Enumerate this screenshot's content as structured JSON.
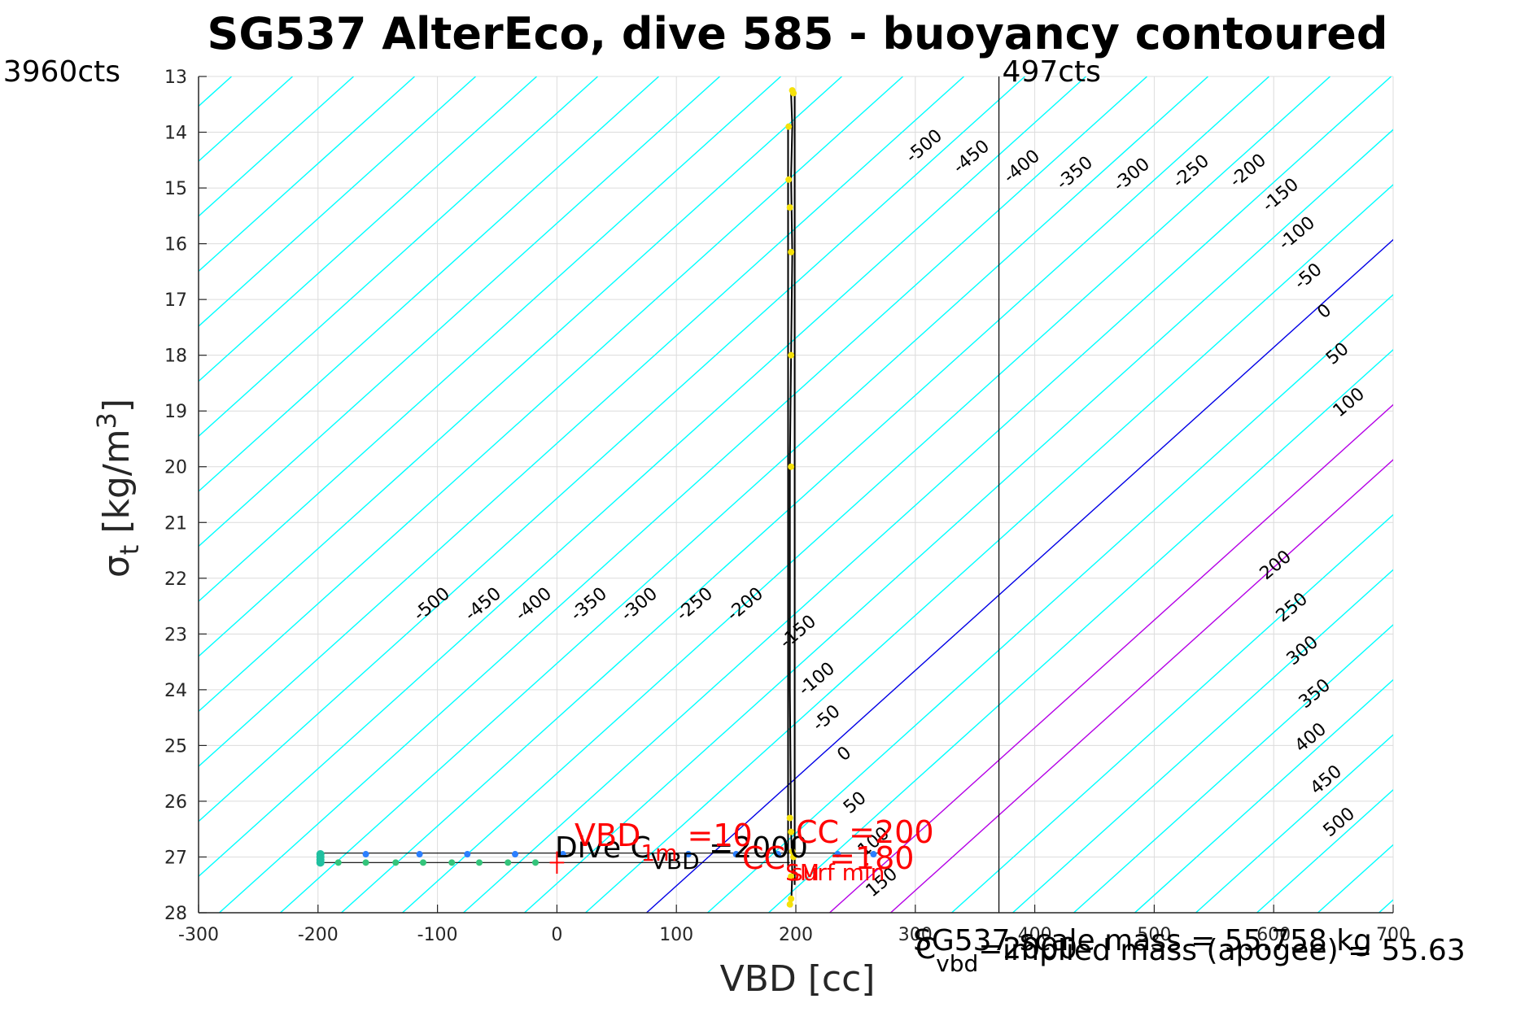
{
  "chart_data": {
    "type": "scatter",
    "title": "SG537 AlterEco, dive 585 - buoyancy contoured",
    "xlabel": "VBD [cc]",
    "ylabel_main": "σ",
    "ylabel_sub": "t",
    "ylabel_rest": " [kg/m",
    "ylabel_sup": "3",
    "ylabel_close": "]",
    "xlim": [
      -300,
      700
    ],
    "ylim": [
      13,
      28
    ],
    "y_reversed": true,
    "grid": true,
    "x_ticks": [
      -300,
      -200,
      -100,
      0,
      100,
      200,
      300,
      400,
      500,
      600,
      700
    ],
    "x_tick_labels": [
      "-300",
      "-200",
      "-100",
      "0",
      "100",
      "200",
      "300",
      "400",
      "500",
      "600",
      "700"
    ],
    "y_ticks": [
      13,
      14,
      15,
      16,
      17,
      18,
      19,
      20,
      21,
      22,
      23,
      24,
      25,
      26,
      27,
      28
    ],
    "y_tick_labels": [
      "13",
      "14",
      "15",
      "16",
      "17",
      "18",
      "19",
      "20",
      "21",
      "22",
      "23",
      "24",
      "25",
      "26",
      "27",
      "28"
    ],
    "contours": {
      "levels": [
        -500,
        -450,
        -400,
        -350,
        -300,
        -250,
        -200,
        -150,
        -100,
        -50,
        0,
        50,
        100,
        150,
        200,
        250,
        300,
        350,
        400,
        450,
        500
      ],
      "labels_lower": [
        "-500",
        "-450",
        "-400",
        "-350",
        "-300",
        "-250",
        "-200",
        "-150",
        "-100",
        "-50",
        "0",
        "50",
        "100",
        "150",
        "200",
        "250",
        "300",
        "350",
        "400",
        "450",
        "500"
      ],
      "labels_upper": [
        "-500",
        "-450",
        "-400",
        "-350",
        "-300",
        "-250",
        "-200",
        "-150",
        "-100",
        "-50",
        "0",
        "50",
        "100"
      ],
      "labels_right": [
        "200",
        "250",
        "300",
        "350",
        "400",
        "450",
        "500"
      ],
      "color_default": "#00ffff",
      "color_zero": "#0000e6",
      "color_magenta": "#b400e6"
    },
    "vertical_lines": [
      {
        "x": 370,
        "label": "497cts",
        "label_left": "3960cts"
      }
    ],
    "dive_profile": {
      "x": [
        196,
        197,
        196,
        195,
        195,
        196,
        197,
        196,
        197,
        196
      ],
      "y": [
        27.9,
        27.3,
        26.5,
        24.0,
        20.0,
        18.0,
        16.2,
        14.8,
        13.9,
        13.3
      ]
    },
    "yellow_points": {
      "x": [
        197,
        198,
        194,
        194,
        195,
        196,
        196,
        196,
        195,
        196,
        197,
        196,
        196,
        195,
        198
      ],
      "y": [
        13.25,
        13.3,
        13.9,
        14.85,
        15.35,
        16.15,
        18.0,
        20.0,
        26.3,
        26.55,
        26.9,
        27.35,
        27.75,
        27.85,
        27.0
      ]
    },
    "dive_points": {
      "x": [
        -198,
        -160,
        -115,
        -75,
        -35,
        5,
        110,
        150,
        185,
        235,
        265
      ],
      "y": [
        26.95,
        26.95,
        26.95,
        26.95,
        26.95,
        26.95,
        26.95,
        26.95,
        26.95,
        26.95,
        26.95
      ],
      "color": "#2b7fff"
    },
    "climb_points": {
      "x": [
        -198,
        -183,
        -160,
        -135,
        -112,
        -88,
        -65,
        -41,
        -18
      ],
      "y": [
        27.1,
        27.1,
        27.1,
        27.1,
        27.1,
        27.1,
        27.1,
        27.1,
        27.1
      ],
      "color": "#33c47a"
    },
    "annotations": {
      "dive_c": "Dive C",
      "dive_c_sub": "VBD",
      "dive_c_value": " =2000",
      "vbd_1m_main": "VBD",
      "vbd_1m_sub": "1m",
      "vbd_1m_value": " =10",
      "cc_main": "CC",
      "cc_value": " =200",
      "cc_sm_main": "CC",
      "cc_sm_sub": "SM",
      "cc_sm_value": " =180",
      "surf_min": "surf min",
      "c_vbd_main": "C",
      "c_vbd_sub": "vbd",
      "c_vbd_value": "=2000",
      "scale_mass": "SG537 scale mass = 55.758 kg",
      "implied_mass": "implied mass (apogee) = 55.63"
    }
  }
}
